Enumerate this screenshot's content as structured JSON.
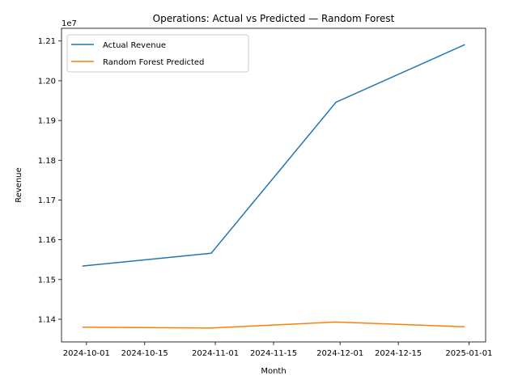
{
  "chart_data": {
    "type": "line",
    "title": "Operations: Actual vs Predicted — Random Forest",
    "xlabel": "Month",
    "ylabel": "Revenue",
    "y_offset_label": "1e7",
    "x_ticks": [
      "2024-10-01",
      "2024-10-15",
      "2024-11-01",
      "2024-11-15",
      "2024-12-01",
      "2024-12-15",
      "2025-01-01"
    ],
    "y_ticks": [
      "1.14",
      "1.15",
      "1.16",
      "1.17",
      "1.18",
      "1.19",
      "1.20",
      "1.21"
    ],
    "ylim": [
      11343000,
      12132000
    ],
    "x": [
      "2024-09-30",
      "2024-10-31",
      "2024-11-30",
      "2024-12-31"
    ],
    "series": [
      {
        "name": "Actual Revenue",
        "color": "#1f77b4",
        "values": [
          11534000,
          11566000,
          11946000,
          12091000
        ]
      },
      {
        "name": "Random Forest Predicted",
        "color": "#ff7f0e",
        "values": [
          11380000,
          11378000,
          11393000,
          11381000
        ]
      }
    ],
    "grid": false,
    "legend": "top-left"
  }
}
